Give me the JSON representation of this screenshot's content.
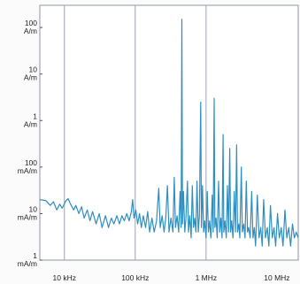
{
  "chart_data": {
    "type": "line",
    "title": "",
    "xlabel": "",
    "ylabel": "",
    "x_scale": "log",
    "y_scale": "log",
    "xlim": [
      4500,
      20000000
    ],
    "ylim": [
      0.001,
      300
    ],
    "grid": "vertical-decades",
    "line_color": "#2f8fc0",
    "x_ticks": [
      {
        "value": 10000,
        "label": "10 kHz"
      },
      {
        "value": 100000,
        "label": "100 kHz"
      },
      {
        "value": 1000000,
        "label": "1 MHz"
      },
      {
        "value": 10000000,
        "label": "10 MHz"
      }
    ],
    "y_ticks": [
      {
        "value": 100,
        "num": "100",
        "unit": "A/m"
      },
      {
        "value": 10,
        "num": "10",
        "unit": "A/m"
      },
      {
        "value": 1,
        "num": "1",
        "unit": "A/m"
      },
      {
        "value": 0.1,
        "num": "100",
        "unit": "mA/m"
      },
      {
        "value": 0.01,
        "num": "10",
        "unit": "mA/m"
      },
      {
        "value": 0.001,
        "num": "1",
        "unit": "mA/m"
      }
    ],
    "series": [
      {
        "points": [
          [
            4500,
            0.02
          ],
          [
            5500,
            0.019
          ],
          [
            6300,
            0.015
          ],
          [
            7000,
            0.018
          ],
          [
            7800,
            0.012
          ],
          [
            8600,
            0.016
          ],
          [
            9300,
            0.013
          ],
          [
            10500,
            0.019
          ],
          [
            11300,
            0.021
          ],
          [
            12200,
            0.016
          ],
          [
            13500,
            0.012
          ],
          [
            14500,
            0.015
          ],
          [
            16000,
            0.01
          ],
          [
            17500,
            0.014
          ],
          [
            19000,
            0.008
          ],
          [
            21000,
            0.012
          ],
          [
            23000,
            0.007
          ],
          [
            25000,
            0.011
          ],
          [
            28000,
            0.006
          ],
          [
            31000,
            0.01
          ],
          [
            34000,
            0.005
          ],
          [
            38000,
            0.009
          ],
          [
            42000,
            0.005
          ],
          [
            46000,
            0.008
          ],
          [
            50000,
            0.006
          ],
          [
            55000,
            0.009
          ],
          [
            60000,
            0.006
          ],
          [
            65000,
            0.009
          ],
          [
            70000,
            0.007
          ],
          [
            76000,
            0.01
          ],
          [
            82000,
            0.007
          ],
          [
            88000,
            0.011
          ],
          [
            92000,
            0.02
          ],
          [
            96000,
            0.008
          ],
          [
            102000,
            0.012
          ],
          [
            108000,
            0.006
          ],
          [
            115000,
            0.01
          ],
          [
            122000,
            0.005
          ],
          [
            130000,
            0.009
          ],
          [
            140000,
            0.005
          ],
          [
            150000,
            0.011
          ],
          [
            160000,
            0.004
          ],
          [
            172000,
            0.008
          ],
          [
            185000,
            0.004
          ],
          [
            200000,
            0.007
          ],
          [
            215000,
            0.035
          ],
          [
            225000,
            0.005
          ],
          [
            240000,
            0.009
          ],
          [
            255000,
            0.004
          ],
          [
            270000,
            0.008
          ],
          [
            285000,
            0.04
          ],
          [
            300000,
            0.004
          ],
          [
            320000,
            0.008
          ],
          [
            340000,
            0.004
          ],
          [
            355000,
            0.06
          ],
          [
            370000,
            0.005
          ],
          [
            390000,
            0.009
          ],
          [
            410000,
            0.004
          ],
          [
            430000,
            0.03
          ],
          [
            445000,
            0.005
          ],
          [
            455000,
            150
          ],
          [
            465000,
            0.006
          ],
          [
            480000,
            0.03
          ],
          [
            500000,
            0.004
          ],
          [
            520000,
            0.008
          ],
          [
            545000,
            0.05
          ],
          [
            565000,
            0.004
          ],
          [
            590000,
            0.009
          ],
          [
            615000,
            0.003
          ],
          [
            640000,
            0.04
          ],
          [
            665000,
            0.005
          ],
          [
            690000,
            0.008
          ],
          [
            720000,
            0.004
          ],
          [
            745000,
            0.05
          ],
          [
            775000,
            0.004
          ],
          [
            805000,
            0.009
          ],
          [
            840000,
            2.5
          ],
          [
            860000,
            0.005
          ],
          [
            890000,
            0.04
          ],
          [
            925000,
            0.004
          ],
          [
            960000,
            0.007
          ],
          [
            1000000,
            0.003
          ],
          [
            1040000,
            0.03
          ],
          [
            1080000,
            0.004
          ],
          [
            1120000,
            0.007
          ],
          [
            1170000,
            0.003
          ],
          [
            1220000,
            0.025
          ],
          [
            1260000,
            0.004
          ],
          [
            1300000,
            3.0
          ],
          [
            1330000,
            0.005
          ],
          [
            1380000,
            0.008
          ],
          [
            1440000,
            0.003
          ],
          [
            1500000,
            0.05
          ],
          [
            1560000,
            0.004
          ],
          [
            1620000,
            0.008
          ],
          [
            1680000,
            0.003
          ],
          [
            1740000,
            0.5
          ],
          [
            1780000,
            0.004
          ],
          [
            1850000,
            0.007
          ],
          [
            1930000,
            0.003
          ],
          [
            2000000,
            0.04
          ],
          [
            2080000,
            0.004
          ],
          [
            2160000,
            0.25
          ],
          [
            2220000,
            0.004
          ],
          [
            2300000,
            0.007
          ],
          [
            2400000,
            0.003
          ],
          [
            2500000,
            0.03
          ],
          [
            2600000,
            0.004
          ],
          [
            2700000,
            0.3
          ],
          [
            2780000,
            0.004
          ],
          [
            2900000,
            0.006
          ],
          [
            3000000,
            0.003
          ],
          [
            3150000,
            0.1
          ],
          [
            3250000,
            0.004
          ],
          [
            3400000,
            0.006
          ],
          [
            3550000,
            0.003
          ],
          [
            3700000,
            0.05
          ],
          [
            3850000,
            0.004
          ],
          [
            4000000,
            0.005
          ],
          [
            4200000,
            0.003
          ],
          [
            4400000,
            0.03
          ],
          [
            4600000,
            0.003
          ],
          [
            4800000,
            0.005
          ],
          [
            5000000,
            0.002
          ],
          [
            5300000,
            0.025
          ],
          [
            5600000,
            0.003
          ],
          [
            5900000,
            0.005
          ],
          [
            6200000,
            0.002
          ],
          [
            6500000,
            0.02
          ],
          [
            6900000,
            0.003
          ],
          [
            7300000,
            0.005
          ],
          [
            7700000,
            0.002
          ],
          [
            8100000,
            0.015
          ],
          [
            8600000,
            0.003
          ],
          [
            9100000,
            0.005
          ],
          [
            9600000,
            0.002
          ],
          [
            10200000,
            0.01
          ],
          [
            10800000,
            0.003
          ],
          [
            11500000,
            0.005
          ],
          [
            12200000,
            0.002
          ],
          [
            13000000,
            0.012
          ],
          [
            13800000,
            0.003
          ],
          [
            14700000,
            0.005
          ],
          [
            15600000,
            0.002
          ],
          [
            16600000,
            0.006
          ],
          [
            17600000,
            0.003
          ],
          [
            18700000,
            0.004
          ],
          [
            20000000,
            0.003
          ]
        ]
      }
    ]
  }
}
